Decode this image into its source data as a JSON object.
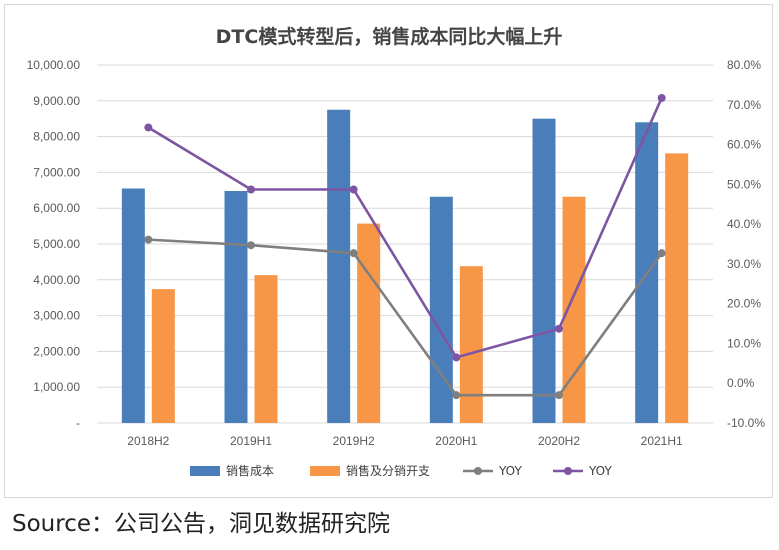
{
  "chart_data": {
    "type": "bar",
    "title": "DTC模式转型后，销售成本同比大幅上升",
    "categories": [
      "2018H2",
      "2019H1",
      "2019H2",
      "2020H1",
      "2020H2",
      "2021H1"
    ],
    "y_left": {
      "min": 0,
      "max": 10000,
      "step": 1000,
      "tick_labels": [
        "-",
        "1,000.00",
        "2,000.00",
        "3,000.00",
        "4,000.00",
        "5,000.00",
        "6,000.00",
        "7,000.00",
        "8,000.00",
        "9,000.00",
        "10,000.00"
      ]
    },
    "y_right": {
      "min": -0.1,
      "max": 0.8,
      "step": 0.1,
      "tick_labels": [
        "-10.0%",
        "0.0%",
        "10.0%",
        "20.0%",
        "30.0%",
        "40.0%",
        "50.0%",
        "60.0%",
        "70.0%",
        "80.0%"
      ]
    },
    "series": [
      {
        "name": "销售成本",
        "kind": "bar",
        "axis": "left",
        "color": "#4a7ebb",
        "values": [
          6550,
          6480,
          8750,
          6320,
          8500,
          8400
        ]
      },
      {
        "name": "销售及分销开支",
        "kind": "bar",
        "axis": "left",
        "color": "#f79646",
        "values": [
          3740,
          4130,
          5570,
          4380,
          6320,
          7530
        ]
      },
      {
        "name": "YOY",
        "kind": "line",
        "axis": "right",
        "color": "#7f7f7f",
        "values": [
          0.361,
          0.347,
          0.327,
          -0.03,
          -0.03,
          0.327
        ]
      },
      {
        "name": "YOY",
        "kind": "line",
        "axis": "right",
        "color": "#7d55a3",
        "values": [
          0.643,
          0.487,
          0.487,
          0.065,
          0.137,
          0.717
        ]
      }
    ],
    "legend_position": "bottom",
    "grid": true
  },
  "source": "Source：公司公告，洞见数据研究院"
}
